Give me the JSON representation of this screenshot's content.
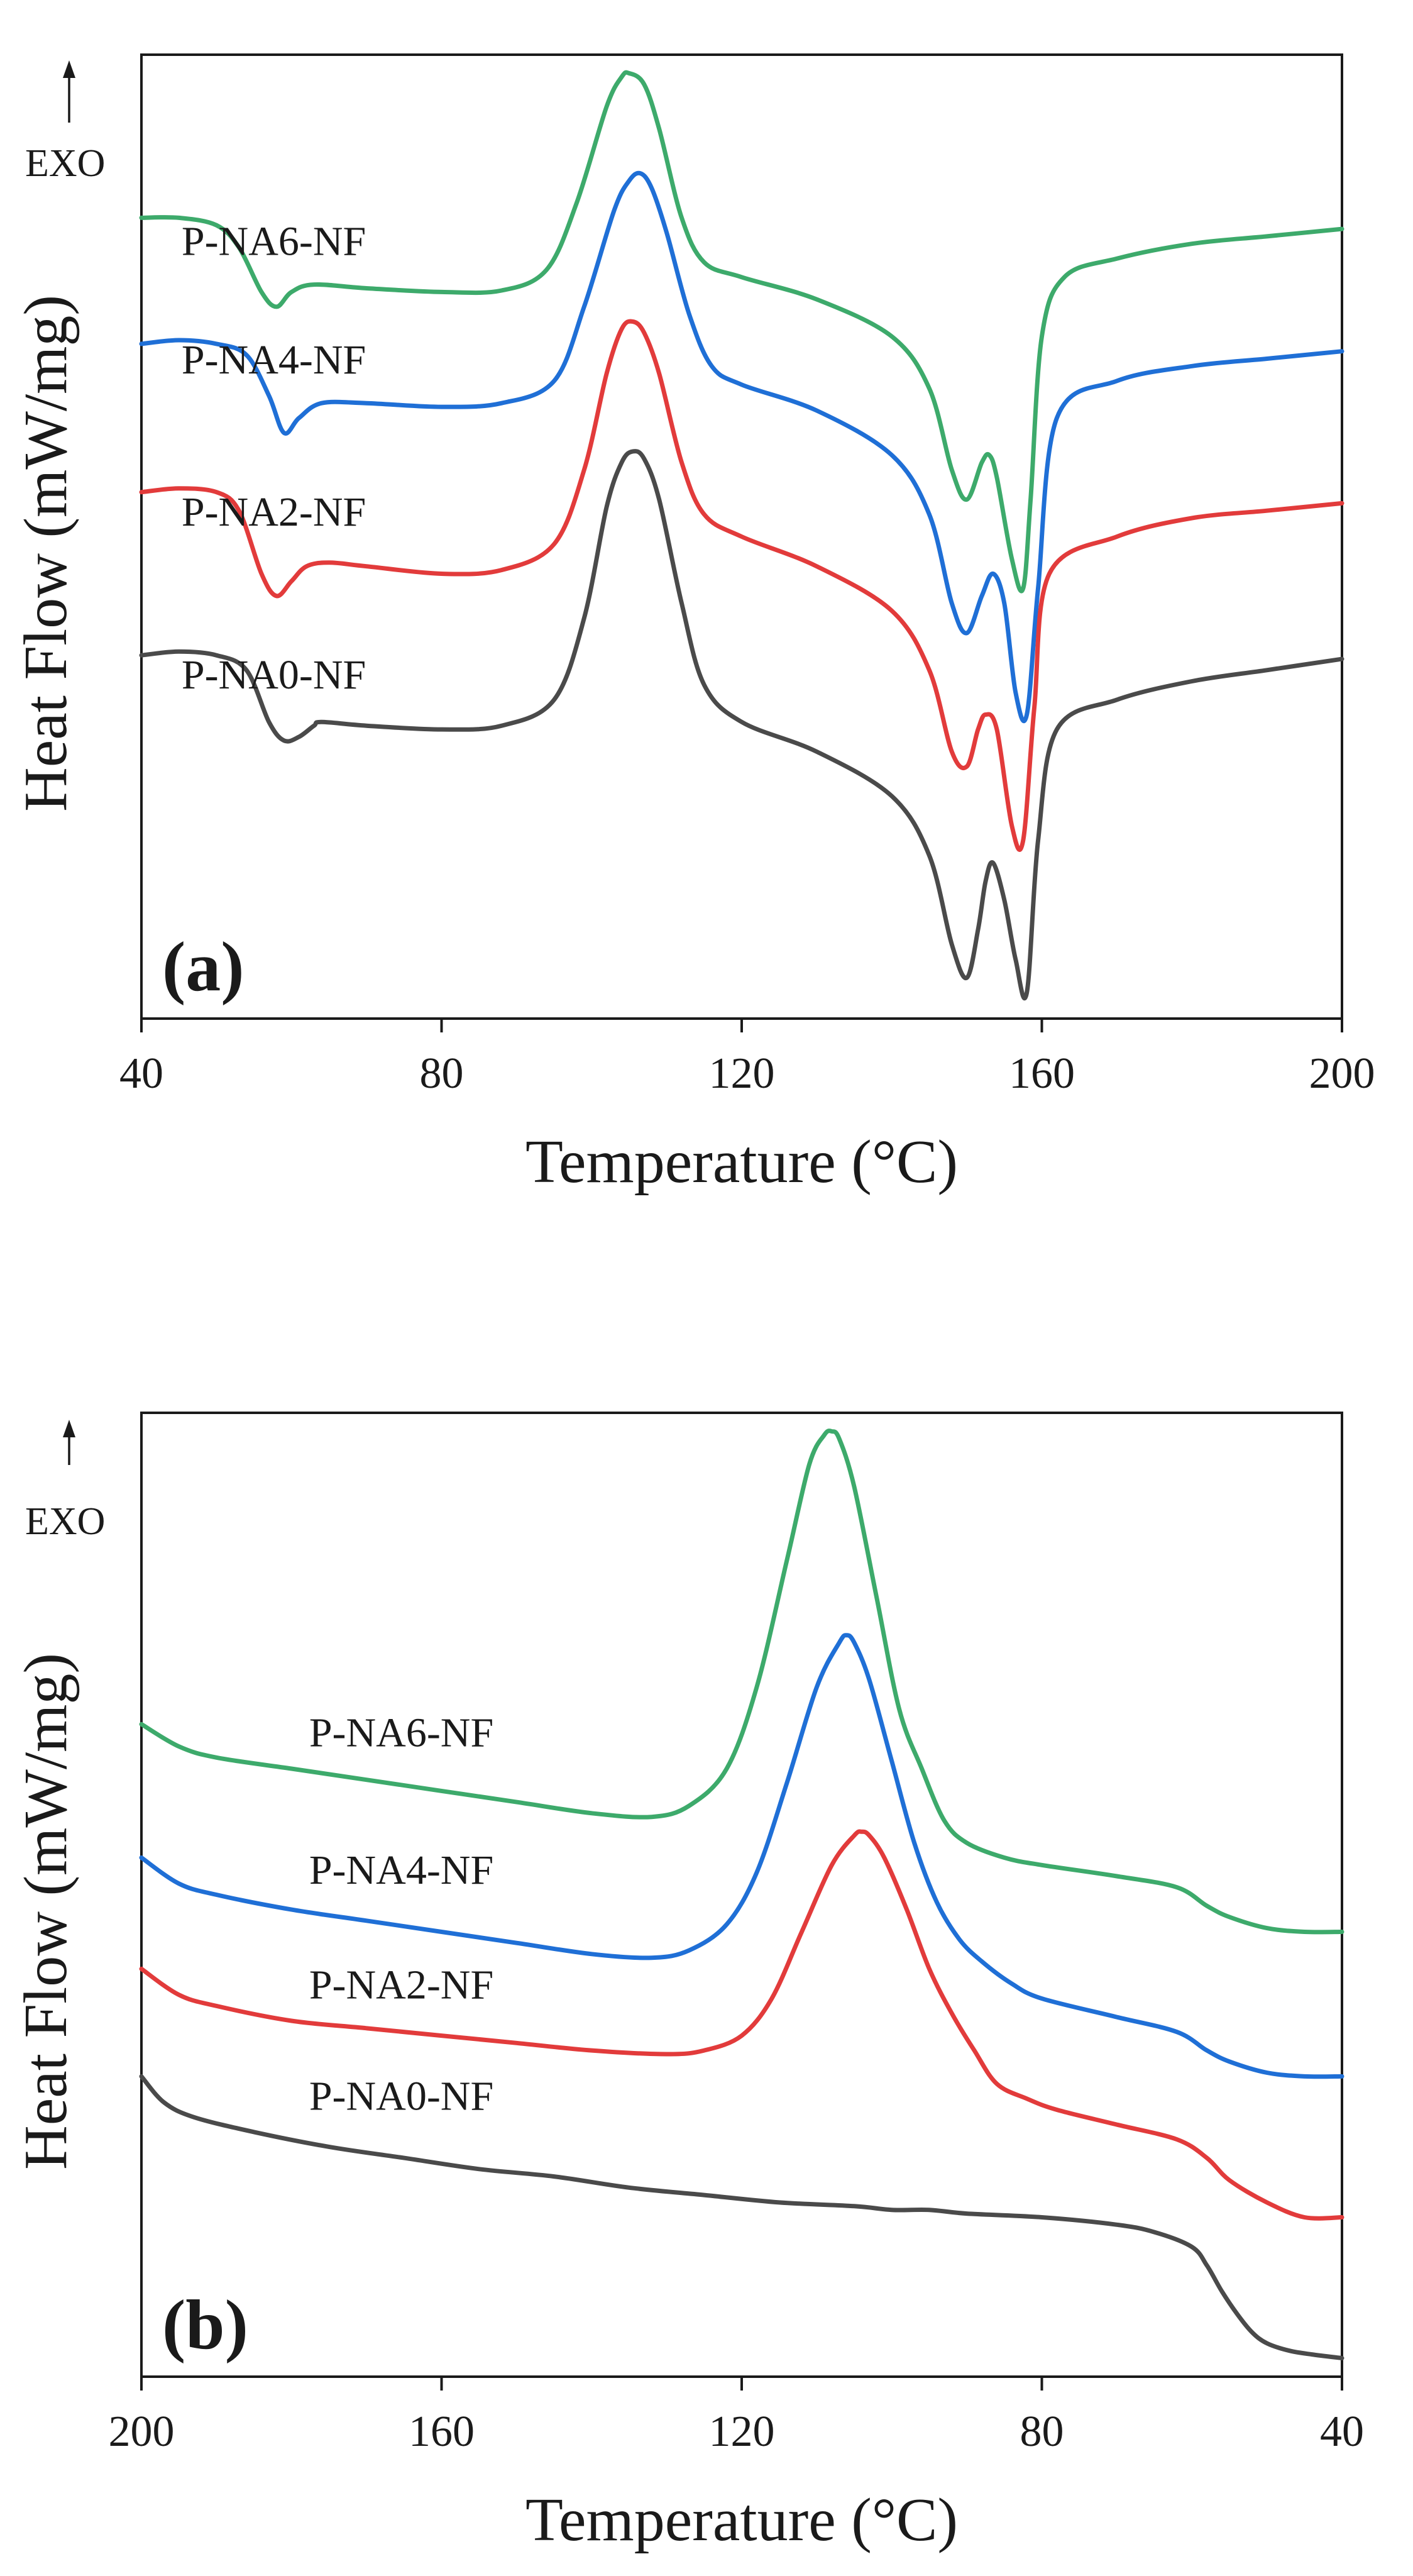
{
  "figure": {
    "exo_label": "EXO",
    "ylabel": "Heat Flow (mW/mg)",
    "xlabel": "Temperature (°C)"
  },
  "chart_data": [
    {
      "type": "line",
      "panel_label": "(a)",
      "xlabel": "Temperature (°C)",
      "ylabel": "Heat Flow (mW/mg)",
      "xlim": [
        40,
        200
      ],
      "ylim": [
        0,
        13
      ],
      "xticks": [
        "40",
        "80",
        "120",
        "160",
        "200"
      ],
      "y_ticks_labeled": false,
      "grid": false,
      "direction_indicator": "EXO arrow pointing up",
      "series": [
        {
          "name": "P-NA6-NF",
          "color": "#3daa6b",
          "label_at": [
            42,
            10.3
          ],
          "x": [
            40,
            45,
            50,
            53,
            56,
            58,
            60,
            63,
            70,
            80,
            88,
            94,
            98,
            102,
            104,
            105,
            107,
            109,
            112,
            115,
            120,
            130,
            140,
            145,
            148,
            150,
            152,
            153,
            154,
            156,
            157.5,
            158.5,
            160,
            163,
            170,
            180,
            190,
            200
          ],
          "values": [
            10.8,
            10.8,
            10.7,
            10.4,
            9.8,
            9.6,
            9.8,
            9.9,
            9.85,
            9.8,
            9.82,
            10.1,
            11.0,
            12.3,
            12.7,
            12.75,
            12.6,
            12.0,
            10.8,
            10.2,
            10.0,
            9.7,
            9.2,
            8.5,
            7.4,
            7.0,
            7.5,
            7.6,
            7.3,
            6.2,
            5.8,
            7.0,
            9.2,
            10.0,
            10.25,
            10.45,
            10.55,
            10.65
          ]
        },
        {
          "name": "P-NA4-NF",
          "color": "#1f6fd6",
          "label_at": [
            42,
            8.7
          ],
          "x": [
            40,
            45,
            50,
            54,
            57,
            59,
            61,
            64,
            70,
            80,
            88,
            95,
            99,
            103,
            105,
            106.5,
            108,
            110,
            113,
            116,
            120,
            130,
            140,
            145,
            148,
            150,
            152,
            153.5,
            155,
            156.5,
            158,
            159.5,
            162,
            170,
            180,
            190,
            200
          ],
          "values": [
            9.1,
            9.15,
            9.1,
            8.95,
            8.4,
            7.9,
            8.1,
            8.3,
            8.3,
            8.25,
            8.3,
            8.6,
            9.6,
            10.9,
            11.3,
            11.4,
            11.2,
            10.6,
            9.5,
            8.8,
            8.55,
            8.2,
            7.6,
            6.8,
            5.6,
            5.2,
            5.7,
            6.0,
            5.6,
            4.4,
            4.1,
            5.8,
            8.1,
            8.6,
            8.8,
            8.9,
            9.0
          ]
        },
        {
          "name": "P-NA2-NF",
          "color": "#e23b3b",
          "label_at": [
            42,
            6.65
          ],
          "x": [
            40,
            45,
            50,
            53,
            56,
            58,
            60,
            62,
            65,
            70,
            80,
            88,
            95,
            99,
            102,
            104,
            105.5,
            107,
            109,
            112,
            115,
            120,
            130,
            140,
            145,
            148,
            150,
            151.5,
            152.5,
            154,
            156,
            157.5,
            159,
            161,
            170,
            180,
            190,
            200
          ],
          "values": [
            7.1,
            7.15,
            7.1,
            6.85,
            6.0,
            5.7,
            5.9,
            6.1,
            6.15,
            6.1,
            6.0,
            6.05,
            6.4,
            7.4,
            8.7,
            9.3,
            9.4,
            9.25,
            8.7,
            7.5,
            6.8,
            6.5,
            6.1,
            5.5,
            4.7,
            3.6,
            3.4,
            3.9,
            4.1,
            3.9,
            2.6,
            2.4,
            4.2,
            6.0,
            6.5,
            6.75,
            6.85,
            6.95
          ]
        },
        {
          "name": "P-NA0-NF",
          "color": "#4a4a4a",
          "label_at": [
            42,
            4.45
          ],
          "x": [
            40,
            45,
            50,
            54,
            57,
            59,
            61,
            63,
            64,
            70,
            80,
            88,
            95,
            99,
            102,
            104,
            105.5,
            107,
            109,
            112,
            115,
            120,
            130,
            140,
            145,
            148,
            150,
            151.5,
            152.5,
            153.5,
            155,
            156.5,
            158,
            159.5,
            162,
            170,
            180,
            190,
            200
          ],
          "values": [
            4.9,
            4.95,
            4.9,
            4.7,
            4.0,
            3.75,
            3.8,
            3.95,
            4.0,
            3.95,
            3.9,
            3.95,
            4.3,
            5.4,
            6.9,
            7.5,
            7.65,
            7.55,
            7.0,
            5.6,
            4.5,
            4.0,
            3.6,
            3.0,
            2.2,
            1.0,
            0.55,
            1.2,
            1.85,
            2.1,
            1.6,
            0.8,
            0.35,
            2.4,
            3.9,
            4.3,
            4.55,
            4.7,
            4.85
          ]
        }
      ]
    },
    {
      "type": "line",
      "panel_label": "(b)",
      "xlabel": "Temperature (°C)",
      "ylabel": "Heat Flow (mW/mg)",
      "xlim": [
        200,
        40
      ],
      "ylim": [
        0,
        13
      ],
      "x_reversed": true,
      "xticks": [
        "200",
        "160",
        "120",
        "80",
        "40"
      ],
      "y_ticks_labeled": false,
      "grid": false,
      "direction_indicator": "EXO arrow pointing up",
      "series": [
        {
          "name": "P-NA6-NF",
          "color": "#3daa6b",
          "label_at": [
            181,
            8.5
          ],
          "x": [
            200,
            195,
            190,
            180,
            170,
            160,
            150,
            140,
            132,
            127,
            122,
            118,
            114,
            111,
            109,
            108,
            107,
            105,
            102,
            99,
            96,
            93,
            90,
            85,
            80,
            70,
            62,
            58,
            55,
            50,
            45,
            40
          ],
          "values": [
            8.8,
            8.5,
            8.35,
            8.2,
            8.05,
            7.9,
            7.75,
            7.6,
            7.55,
            7.7,
            8.2,
            9.3,
            11.0,
            12.3,
            12.7,
            12.75,
            12.65,
            12.0,
            10.5,
            9.0,
            8.2,
            7.5,
            7.2,
            7.0,
            6.9,
            6.75,
            6.6,
            6.35,
            6.2,
            6.05,
            6.0,
            6.0
          ]
        },
        {
          "name": "P-NA4-NF",
          "color": "#1f6fd6",
          "label_at": [
            181,
            6.65
          ],
          "x": [
            200,
            195,
            190,
            180,
            170,
            160,
            150,
            140,
            132,
            127,
            122,
            118,
            114,
            110,
            107,
            106,
            105,
            103,
            100,
            97,
            94,
            91,
            88,
            84,
            80,
            70,
            62,
            58,
            55,
            50,
            45,
            40
          ],
          "values": [
            7.0,
            6.65,
            6.5,
            6.3,
            6.15,
            6.0,
            5.85,
            5.7,
            5.65,
            5.75,
            6.1,
            6.8,
            8.0,
            9.3,
            9.9,
            10.0,
            9.9,
            9.4,
            8.3,
            7.2,
            6.4,
            5.9,
            5.6,
            5.3,
            5.1,
            4.85,
            4.65,
            4.4,
            4.25,
            4.1,
            4.05,
            4.05
          ]
        },
        {
          "name": "P-NA2-NF",
          "color": "#e23b3b",
          "label_at": [
            181,
            5.1
          ],
          "x": [
            200,
            195,
            190,
            180,
            170,
            160,
            150,
            140,
            130,
            125,
            120,
            116,
            112,
            108,
            105,
            104,
            103,
            101,
            98,
            95,
            92,
            89,
            86,
            82,
            78,
            70,
            62,
            58,
            55,
            50,
            45,
            40
          ],
          "values": [
            5.5,
            5.15,
            5.0,
            4.8,
            4.7,
            4.6,
            4.5,
            4.4,
            4.35,
            4.4,
            4.6,
            5.1,
            6.0,
            6.9,
            7.3,
            7.35,
            7.3,
            7.0,
            6.3,
            5.5,
            4.9,
            4.4,
            3.95,
            3.75,
            3.6,
            3.4,
            3.2,
            2.95,
            2.65,
            2.35,
            2.15,
            2.15
          ]
        },
        {
          "name": "P-NA0-NF",
          "color": "#4a4a4a",
          "label_at": [
            181,
            3.6
          ],
          "x": [
            200,
            197,
            193,
            185,
            175,
            165,
            155,
            145,
            135,
            125,
            115,
            105,
            100,
            95,
            90,
            80,
            70,
            65,
            60,
            58,
            56,
            54,
            52,
            50,
            47,
            44,
            40
          ],
          "values": [
            4.05,
            3.7,
            3.5,
            3.3,
            3.1,
            2.95,
            2.8,
            2.7,
            2.55,
            2.45,
            2.35,
            2.3,
            2.25,
            2.25,
            2.2,
            2.15,
            2.05,
            1.95,
            1.75,
            1.5,
            1.15,
            0.85,
            0.6,
            0.45,
            0.35,
            0.3,
            0.25
          ]
        }
      ]
    }
  ]
}
